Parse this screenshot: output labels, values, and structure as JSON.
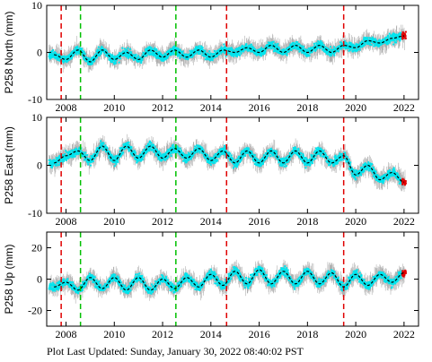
{
  "chart_data": [
    {
      "type": "scatter",
      "ylabel": "P258 North (mm)",
      "ylim": [
        -10,
        10
      ],
      "yticks": [
        -10,
        0,
        10
      ],
      "xlim": [
        2007.2,
        2022.6
      ],
      "xticks": [
        2008,
        2010,
        2012,
        2014,
        2016,
        2018,
        2020,
        2022
      ],
      "series": [
        {
          "x": [
            2007.5,
            2008.0,
            2008.5,
            2009.0,
            2009.5,
            2010.0,
            2010.5,
            2011.0,
            2011.5,
            2012.0,
            2012.5,
            2013.0,
            2013.5,
            2014.0,
            2014.5,
            2015.0,
            2015.5,
            2016.0,
            2016.5,
            2017.0,
            2017.5,
            2018.0,
            2018.5,
            2019.0,
            2019.5,
            2020.0,
            2020.5,
            2021.0,
            2021.5,
            2022.0
          ],
          "values": [
            -0.5,
            -1.5,
            0.5,
            -2.0,
            0.5,
            -1.5,
            0.0,
            -1.5,
            0.5,
            -1.0,
            0.5,
            -1.0,
            0.5,
            -1.0,
            0.5,
            0.0,
            1.0,
            0.0,
            1.5,
            0.0,
            1.5,
            0.0,
            1.5,
            0.0,
            1.5,
            1.0,
            2.5,
            2.0,
            3.0,
            3.5
          ]
        }
      ],
      "daily_scatter_color": "#00e5ee",
      "error_bar_color": "#b0b0b0",
      "model_line_color": "#000000",
      "recent_points_color": "#e00000"
    },
    {
      "type": "scatter",
      "ylabel": "P258 East (mm)",
      "ylim": [
        -10,
        10
      ],
      "yticks": [
        -10,
        0,
        10
      ],
      "xlim": [
        2007.2,
        2022.6
      ],
      "xticks": [
        2008,
        2010,
        2012,
        2014,
        2016,
        2018,
        2020,
        2022
      ],
      "series": [
        {
          "x": [
            2007.5,
            2008.0,
            2008.5,
            2009.0,
            2009.5,
            2010.0,
            2010.5,
            2011.0,
            2011.5,
            2012.0,
            2012.5,
            2013.0,
            2013.5,
            2014.0,
            2014.5,
            2015.0,
            2015.5,
            2016.0,
            2016.5,
            2017.0,
            2017.5,
            2018.0,
            2018.5,
            2019.0,
            2019.5,
            2020.0,
            2020.5,
            2021.0,
            2021.5,
            2022.0
          ],
          "values": [
            0.5,
            2.0,
            3.0,
            1.0,
            4.0,
            1.0,
            4.0,
            1.5,
            4.0,
            1.5,
            3.5,
            1.5,
            3.5,
            1.0,
            3.0,
            0.5,
            3.0,
            0.5,
            3.0,
            0.5,
            3.0,
            0.5,
            3.0,
            0.5,
            2.0,
            -2.0,
            0.0,
            -3.0,
            -1.5,
            -3.5
          ]
        }
      ],
      "daily_scatter_color": "#00e5ee",
      "error_bar_color": "#b0b0b0",
      "model_line_color": "#000000",
      "recent_points_color": "#e00000"
    },
    {
      "type": "scatter",
      "ylabel": "P258 Up (mm)",
      "ylim": [
        -30,
        30
      ],
      "yticks": [
        -20,
        0,
        20
      ],
      "xlim": [
        2007.2,
        2022.6
      ],
      "xticks": [
        2008,
        2010,
        2012,
        2014,
        2016,
        2018,
        2020,
        2022
      ],
      "series": [
        {
          "x": [
            2007.5,
            2008.0,
            2008.5,
            2009.0,
            2009.5,
            2010.0,
            2010.5,
            2011.0,
            2011.5,
            2012.0,
            2012.5,
            2013.0,
            2013.5,
            2014.0,
            2014.5,
            2015.0,
            2015.5,
            2016.0,
            2016.5,
            2017.0,
            2017.5,
            2018.0,
            2018.5,
            2019.0,
            2019.5,
            2020.0,
            2020.5,
            2021.0,
            2021.5,
            2022.0
          ],
          "values": [
            -5,
            -2,
            -7,
            1,
            -6,
            1,
            -7,
            1,
            -7,
            0,
            -6,
            1,
            -5,
            3,
            -4,
            5,
            -3,
            6,
            -3,
            5,
            -3,
            5,
            -3,
            4,
            -5,
            3,
            -4,
            3,
            -2,
            4
          ]
        }
      ],
      "daily_scatter_color": "#00e5ee",
      "error_bar_color": "#b0b0b0",
      "model_line_color": "#000000",
      "recent_points_color": "#e00000"
    }
  ],
  "event_lines": {
    "red": {
      "color": "#e00000",
      "x": [
        2007.8,
        2014.65,
        2019.5
      ]
    },
    "green": {
      "color": "#00c000",
      "x": [
        2008.6,
        2012.55
      ]
    }
  },
  "footer": {
    "label": "Plot Last Updated:",
    "timestamp": "Sunday, January 30, 2022 08:40:02 PST"
  }
}
